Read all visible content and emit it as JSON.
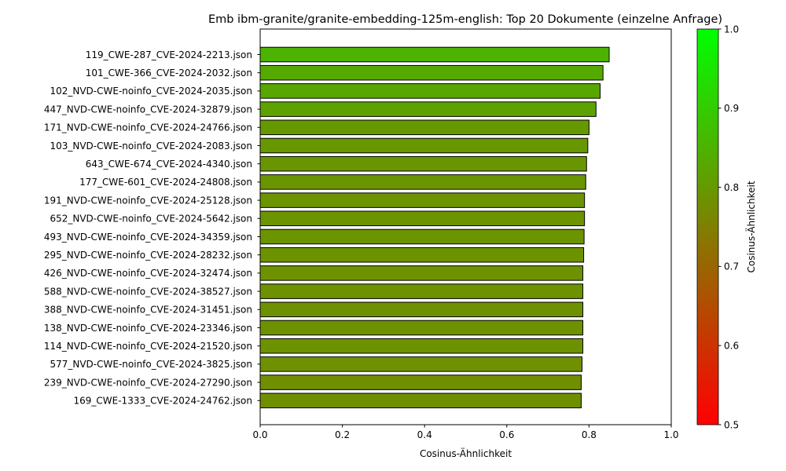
{
  "chart_data": {
    "type": "bar",
    "orientation": "horizontal",
    "title": "Emb ibm-granite/granite-embedding-125m-english: Top 20 Dokumente (einzelne Anfrage)",
    "xlabel": "Cosinus-Ähnlichkeit",
    "ylabel": "",
    "xlim": [
      0.0,
      1.0
    ],
    "xticks": [
      "0.0",
      "0.2",
      "0.4",
      "0.6",
      "0.8",
      "1.0"
    ],
    "grid": false,
    "categories": [
      "119_CWE-287_CVE-2024-2213.json",
      "101_CWE-366_CVE-2024-2032.json",
      "102_NVD-CWE-noinfo_CVE-2024-2035.json",
      "447_NVD-CWE-noinfo_CVE-2024-32879.json",
      "171_NVD-CWE-noinfo_CVE-2024-24766.json",
      "103_NVD-CWE-noinfo_CVE-2024-2083.json",
      "643_CWE-674_CVE-2024-4340.json",
      "177_CWE-601_CVE-2024-24808.json",
      "191_NVD-CWE-noinfo_CVE-2024-25128.json",
      "652_NVD-CWE-noinfo_CVE-2024-5642.json",
      "493_NVD-CWE-noinfo_CVE-2024-34359.json",
      "295_NVD-CWE-noinfo_CVE-2024-28232.json",
      "426_NVD-CWE-noinfo_CVE-2024-32474.json",
      "588_NVD-CWE-noinfo_CVE-2024-38527.json",
      "388_NVD-CWE-noinfo_CVE-2024-31451.json",
      "138_NVD-CWE-noinfo_CVE-2024-23346.json",
      "114_NVD-CWE-noinfo_CVE-2024-21520.json",
      "577_NVD-CWE-noinfo_CVE-2024-3825.json",
      "239_NVD-CWE-noinfo_CVE-2024-27290.json",
      "169_CWE-1333_CVE-2024-24762.json"
    ],
    "values": [
      0.849,
      0.834,
      0.827,
      0.817,
      0.8,
      0.797,
      0.794,
      0.792,
      0.789,
      0.789,
      0.788,
      0.787,
      0.785,
      0.785,
      0.785,
      0.785,
      0.785,
      0.783,
      0.781,
      0.781
    ],
    "colorbar": {
      "label": "Cosinus-Ähnlichkeit",
      "range": [
        0.5,
        1.0
      ],
      "ticks": [
        "0.5",
        "0.6",
        "0.7",
        "0.8",
        "0.9",
        "1.0"
      ],
      "color_low": "#ff0000",
      "color_high": "#00ff00"
    },
    "bar_edge_color": "#000000"
  }
}
